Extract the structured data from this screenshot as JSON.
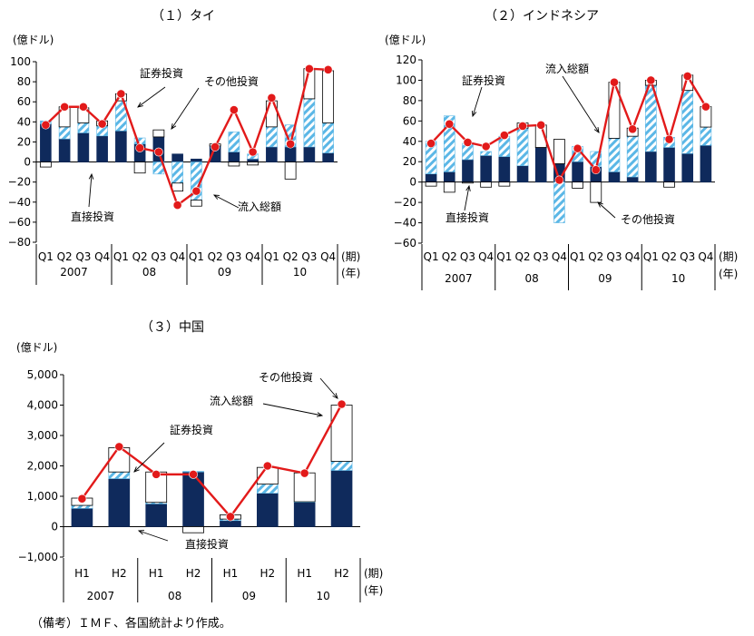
{
  "note": "（備考）ＩＭＦ、各国統計より作成。",
  "chart_data": [
    {
      "type": "bar",
      "title": "（１）タイ",
      "ylabel": "(億ドル)",
      "ylim": [
        -80,
        100
      ],
      "yticks": [
        "100",
        "80",
        "60",
        "40",
        "20",
        "0",
        "−20",
        "−40",
        "−60",
        "−80"
      ],
      "categories": [
        "Q1",
        "Q2",
        "Q3",
        "Q4",
        "Q1",
        "Q2",
        "Q3",
        "Q4",
        "Q1",
        "Q2",
        "Q3",
        "Q4",
        "Q1",
        "Q2",
        "Q3",
        "Q4"
      ],
      "groups": [
        "2007",
        "08",
        "09",
        "10"
      ],
      "period_label": "(期)",
      "year_label": "(年)",
      "series": [
        {
          "name": "直接投資",
          "kind": "direct",
          "values": [
            38,
            23,
            29,
            26,
            31,
            18,
            25,
            8,
            3,
            16,
            10,
            3,
            15,
            15,
            15,
            9
          ]
        },
        {
          "name": "証券投資",
          "kind": "portfolio",
          "values": [
            3,
            12,
            10,
            10,
            30,
            6,
            -12,
            -21,
            -38,
            0,
            20,
            5,
            20,
            22,
            48,
            30
          ]
        },
        {
          "name": "その他投資",
          "kind": "other",
          "values": [
            -5,
            20,
            15,
            5,
            7,
            -11,
            7,
            -8,
            -6,
            2,
            -4,
            -3,
            26,
            -17,
            30,
            52
          ]
        },
        {
          "name": "流入総額",
          "kind": "line",
          "values": [
            37,
            55,
            55,
            38,
            68,
            14,
            10,
            -43,
            -29,
            15,
            52,
            10,
            64,
            18,
            93,
            92
          ]
        }
      ],
      "annotations": [
        "証券投資",
        "その他投資",
        "直接投資",
        "流入総額"
      ]
    },
    {
      "type": "bar",
      "title": "（２）インドネシア",
      "ylabel": "(億ドル)",
      "ylim": [
        -60,
        120
      ],
      "yticks": [
        "120",
        "100",
        "80",
        "60",
        "40",
        "20",
        "0",
        "−20",
        "−40",
        "−60"
      ],
      "categories": [
        "Q1",
        "Q2",
        "Q3",
        "Q4",
        "Q1",
        "Q2",
        "Q3",
        "Q4",
        "Q1",
        "Q2",
        "Q3",
        "Q4",
        "Q1",
        "Q2",
        "Q3",
        "Q4"
      ],
      "groups": [
        "2007",
        "08",
        "09",
        "10"
      ],
      "period_label": "(期)",
      "year_label": "(年)",
      "series": [
        {
          "name": "直接投資",
          "kind": "direct",
          "values": [
            8,
            10,
            22,
            26,
            25,
            16,
            34,
            18,
            20,
            15,
            10,
            5,
            30,
            34,
            28,
            36
          ]
        },
        {
          "name": "証券投資",
          "kind": "portfolio",
          "values": [
            32,
            55,
            16,
            4,
            20,
            37,
            0,
            -40,
            15,
            15,
            33,
            40,
            65,
            10,
            62,
            18
          ]
        },
        {
          "name": "その他投資",
          "kind": "other",
          "values": [
            -4,
            -10,
            -1,
            -5,
            -4,
            5,
            22,
            24,
            -6,
            -20,
            55,
            8,
            5,
            -5,
            15,
            20
          ]
        },
        {
          "name": "流入総額",
          "kind": "line",
          "values": [
            38,
            57,
            39,
            35,
            46,
            55,
            56,
            2,
            33,
            12,
            98,
            52,
            100,
            42,
            104,
            74
          ]
        }
      ],
      "annotations": [
        "証券投資",
        "流入総額",
        "直接投資",
        "その他投資"
      ]
    },
    {
      "type": "bar",
      "title": "（３）中国",
      "ylabel": "(億ドル)",
      "ylim": [
        -1000,
        5000
      ],
      "yticks": [
        "5,000",
        "4,000",
        "3,000",
        "2,000",
        "1,000",
        "0",
        "−1,000"
      ],
      "categories": [
        "H1",
        "H2",
        "H1",
        "H2",
        "H1",
        "H2",
        "H1",
        "H2"
      ],
      "groups": [
        "2007",
        "08",
        "09",
        "10"
      ],
      "period_label": "(期)",
      "year_label": "(年)",
      "series": [
        {
          "name": "直接投資",
          "kind": "direct",
          "values": [
            600,
            1580,
            750,
            1800,
            200,
            1100,
            800,
            1850
          ]
        },
        {
          "name": "証券投資",
          "kind": "portfolio",
          "values": [
            100,
            220,
            50,
            20,
            50,
            300,
            20,
            300
          ]
        },
        {
          "name": "その他投資",
          "kind": "other",
          "values": [
            240,
            800,
            1000,
            -200,
            140,
            550,
            950,
            1850
          ]
        },
        {
          "name": "流入総額",
          "kind": "line",
          "values": [
            920,
            2630,
            1720,
            1720,
            330,
            2000,
            1760,
            4030
          ]
        }
      ],
      "annotations": [
        "その他投資",
        "流入総額",
        "証券投資",
        "直接投資"
      ]
    }
  ]
}
